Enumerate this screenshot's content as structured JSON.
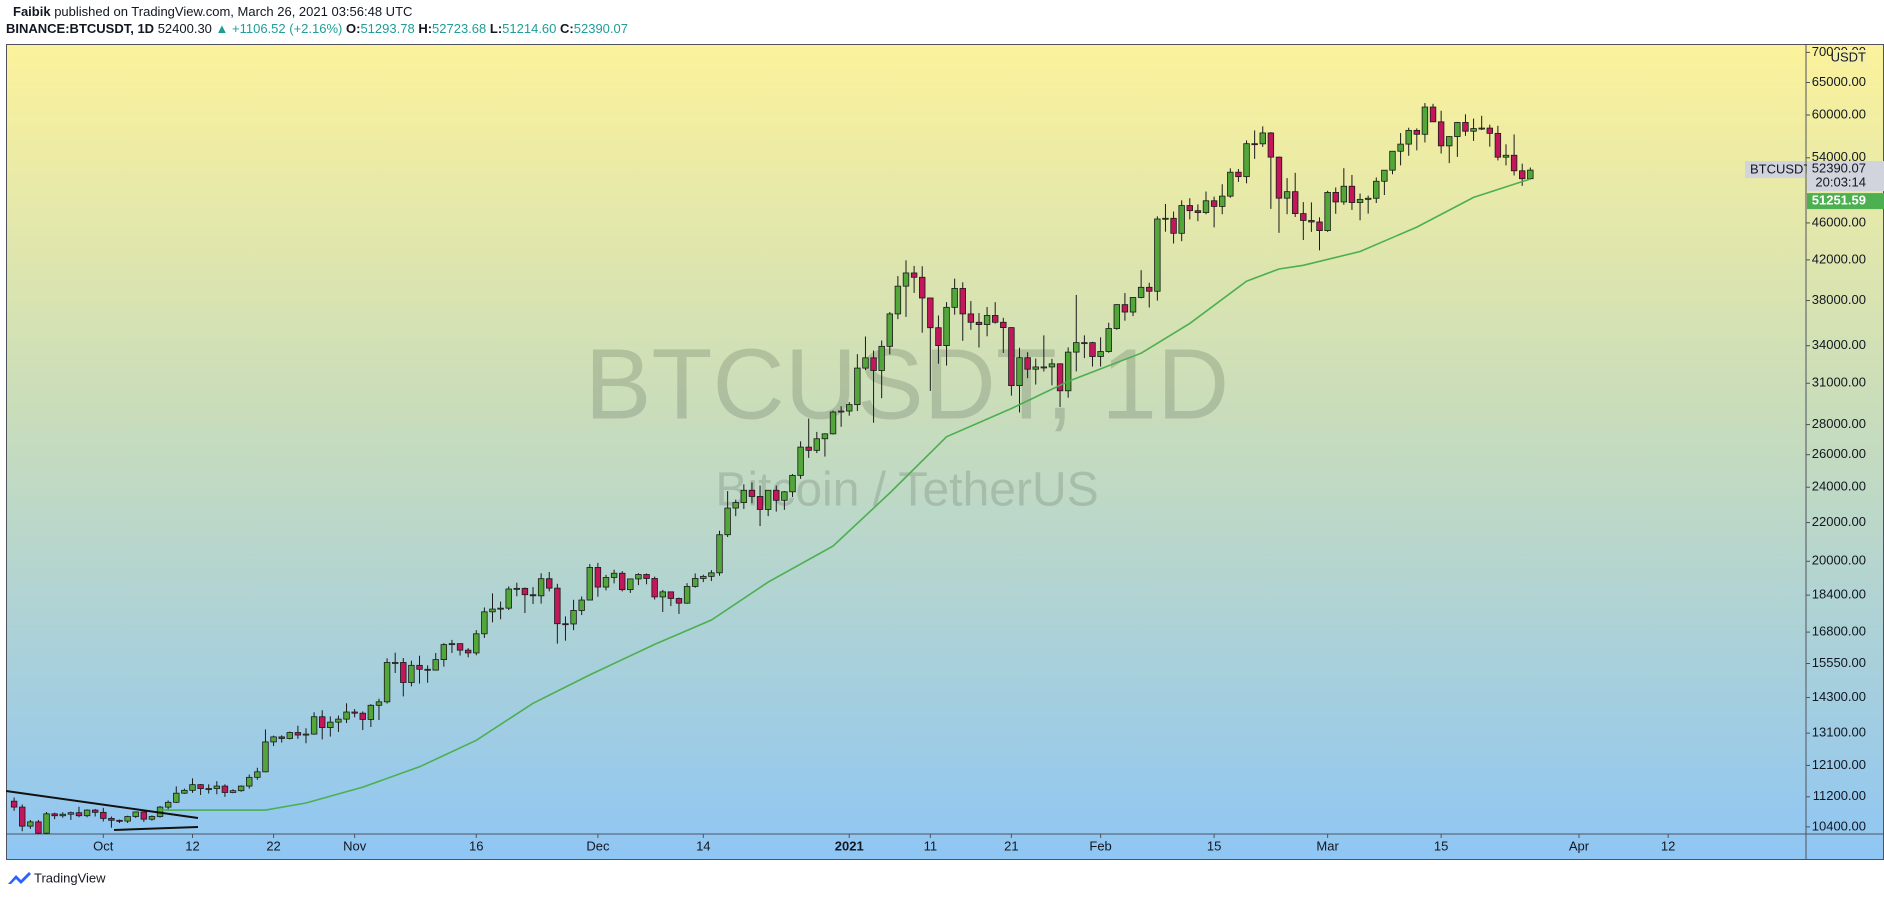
{
  "header": {
    "author": "Faibik",
    "published": "published on TradingView.com, March 26, 2021 03:56:48 UTC",
    "symbol": "BINANCE:BTCUSDT, 1D",
    "last": "52400.30",
    "change": "▲ +1106.52 (+2.16%)",
    "ohlc": [
      {
        "key": "O:",
        "value": "51293.78"
      },
      {
        "key": "H:",
        "value": "52723.68"
      },
      {
        "key": "L:",
        "value": "51214.60"
      },
      {
        "key": "C:",
        "value": "52390.07"
      }
    ]
  },
  "footer": {
    "brand": "TradingView"
  },
  "chart_data": {
    "type": "candlestick",
    "watermark": "BTCUSDT, 1D",
    "watermark_subtitle": "Bitcoin / TetherUS",
    "ylabel": "USDT",
    "symbol_tag": "BTCUSDT",
    "countdown": "20:03:14",
    "log_y": true,
    "grid": false,
    "up_color": "#52a63a",
    "down_color": "#c2185b",
    "wick_color": "#1a1a1a",
    "xlim": [
      "2020-09-19",
      "2021-04-29"
    ],
    "xticks": [
      {
        "value": "2020-10-01",
        "label": "Oct"
      },
      {
        "value": "2020-10-12",
        "label": "12"
      },
      {
        "value": "2020-10-22",
        "label": "22"
      },
      {
        "value": "2020-11-01",
        "label": "Nov"
      },
      {
        "value": "2020-11-16",
        "label": "16"
      },
      {
        "value": "2020-12-01",
        "label": "Dec"
      },
      {
        "value": "2020-12-14",
        "label": "14"
      },
      {
        "value": "2021-01-01",
        "label": "2021"
      },
      {
        "value": "2021-01-11",
        "label": "11"
      },
      {
        "value": "2021-01-21",
        "label": "21"
      },
      {
        "value": "2021-02-01",
        "label": "Feb"
      },
      {
        "value": "2021-02-15",
        "label": "15"
      },
      {
        "value": "2021-03-01",
        "label": "Mar"
      },
      {
        "value": "2021-03-15",
        "label": "15"
      },
      {
        "value": "2021-04-01",
        "label": "Apr"
      },
      {
        "value": "2021-04-12",
        "label": "12"
      }
    ],
    "ylim": [
      10220,
      71460
    ],
    "yticks": [
      {
        "value": 10400,
        "label": "10400.00"
      },
      {
        "value": 11200,
        "label": "11200.00"
      },
      {
        "value": 12100,
        "label": "12100.00"
      },
      {
        "value": 13100,
        "label": "13100.00"
      },
      {
        "value": 14300,
        "label": "14300.00"
      },
      {
        "value": 15550,
        "label": "15550.00"
      },
      {
        "value": 16800,
        "label": "16800.00"
      },
      {
        "value": 18400,
        "label": "18400.00"
      },
      {
        "value": 20000,
        "label": "20000.00"
      },
      {
        "value": 22000,
        "label": "22000.00"
      },
      {
        "value": 24000,
        "label": "24000.00"
      },
      {
        "value": 26000,
        "label": "26000.00"
      },
      {
        "value": 28000,
        "label": "28000.00"
      },
      {
        "value": 31000,
        "label": "31000.00"
      },
      {
        "value": 34000,
        "label": "34000.00"
      },
      {
        "value": 38000,
        "label": "38000.00"
      },
      {
        "value": 42000,
        "label": "42000.00"
      },
      {
        "value": 46000,
        "label": "46000.00"
      },
      {
        "value": 54000,
        "label": "54000.00"
      },
      {
        "value": 60000,
        "label": "60000.00"
      },
      {
        "value": 65000,
        "label": "65000.00"
      },
      {
        "value": 70000,
        "label": "70000.00"
      }
    ],
    "x": [
      "2020-09-20",
      "2020-09-21",
      "2020-09-22",
      "2020-09-23",
      "2020-09-24",
      "2020-09-25",
      "2020-09-26",
      "2020-09-27",
      "2020-09-28",
      "2020-09-29",
      "2020-09-30",
      "2020-10-01",
      "2020-10-02",
      "2020-10-03",
      "2020-10-04",
      "2020-10-05",
      "2020-10-06",
      "2020-10-07",
      "2020-10-08",
      "2020-10-09",
      "2020-10-10",
      "2020-10-11",
      "2020-10-12",
      "2020-10-13",
      "2020-10-14",
      "2020-10-15",
      "2020-10-16",
      "2020-10-17",
      "2020-10-18",
      "2020-10-19",
      "2020-10-20",
      "2020-10-21",
      "2020-10-22",
      "2020-10-23",
      "2020-10-24",
      "2020-10-25",
      "2020-10-26",
      "2020-10-27",
      "2020-10-28",
      "2020-10-29",
      "2020-10-30",
      "2020-10-31",
      "2020-11-01",
      "2020-11-02",
      "2020-11-03",
      "2020-11-04",
      "2020-11-05",
      "2020-11-06",
      "2020-11-07",
      "2020-11-08",
      "2020-11-09",
      "2020-11-10",
      "2020-11-11",
      "2020-11-12",
      "2020-11-13",
      "2020-11-14",
      "2020-11-15",
      "2020-11-16",
      "2020-11-17",
      "2020-11-18",
      "2020-11-19",
      "2020-11-20",
      "2020-11-21",
      "2020-11-22",
      "2020-11-23",
      "2020-11-24",
      "2020-11-25",
      "2020-11-26",
      "2020-11-27",
      "2020-11-28",
      "2020-11-29",
      "2020-11-30",
      "2020-12-01",
      "2020-12-02",
      "2020-12-03",
      "2020-12-04",
      "2020-12-05",
      "2020-12-06",
      "2020-12-07",
      "2020-12-08",
      "2020-12-09",
      "2020-12-10",
      "2020-12-11",
      "2020-12-12",
      "2020-12-13",
      "2020-12-14",
      "2020-12-15",
      "2020-12-16",
      "2020-12-17",
      "2020-12-18",
      "2020-12-19",
      "2020-12-20",
      "2020-12-21",
      "2020-12-22",
      "2020-12-23",
      "2020-12-24",
      "2020-12-25",
      "2020-12-26",
      "2020-12-27",
      "2020-12-28",
      "2020-12-29",
      "2020-12-30",
      "2020-12-31",
      "2021-01-01",
      "2021-01-02",
      "2021-01-03",
      "2021-01-04",
      "2021-01-05",
      "2021-01-06",
      "2021-01-07",
      "2021-01-08",
      "2021-01-09",
      "2021-01-10",
      "2021-01-11",
      "2021-01-12",
      "2021-01-13",
      "2021-01-14",
      "2021-01-15",
      "2021-01-16",
      "2021-01-17",
      "2021-01-18",
      "2021-01-19",
      "2021-01-20",
      "2021-01-21",
      "2021-01-22",
      "2021-01-23",
      "2021-01-24",
      "2021-01-25",
      "2021-01-26",
      "2021-01-27",
      "2021-01-28",
      "2021-01-29",
      "2021-01-30",
      "2021-01-31",
      "2021-02-01",
      "2021-02-02",
      "2021-02-03",
      "2021-02-04",
      "2021-02-05",
      "2021-02-06",
      "2021-02-07",
      "2021-02-08",
      "2021-02-09",
      "2021-02-10",
      "2021-02-11",
      "2021-02-12",
      "2021-02-13",
      "2021-02-14",
      "2021-02-15",
      "2021-02-16",
      "2021-02-17",
      "2021-02-18",
      "2021-02-19",
      "2021-02-20",
      "2021-02-21",
      "2021-02-22",
      "2021-02-23",
      "2021-02-24",
      "2021-02-25",
      "2021-02-26",
      "2021-02-27",
      "2021-02-28",
      "2021-03-01",
      "2021-03-02",
      "2021-03-03",
      "2021-03-04",
      "2021-03-05",
      "2021-03-06",
      "2021-03-07",
      "2021-03-08",
      "2021-03-09",
      "2021-03-10",
      "2021-03-11",
      "2021-03-12",
      "2021-03-13",
      "2021-03-14",
      "2021-03-15",
      "2021-03-16",
      "2021-03-17",
      "2021-03-18",
      "2021-03-19",
      "2021-03-20",
      "2021-03-21",
      "2021-03-22",
      "2021-03-23",
      "2021-03-24",
      "2021-03-25",
      "2021-03-26"
    ],
    "open": [
      11080,
      10920,
      10420,
      10530,
      10240,
      10740,
      10690,
      10730,
      10770,
      10690,
      10840,
      10780,
      10620,
      10570,
      10550,
      10670,
      10790,
      10600,
      10670,
      10920,
      11050,
      11300,
      11380,
      11540,
      11430,
      11430,
      11500,
      11320,
      11370,
      11500,
      11750,
      11910,
      12820,
      12980,
      12930,
      13120,
      13040,
      13070,
      13640,
      13280,
      13460,
      13560,
      13800,
      13760,
      13550,
      14030,
      14150,
      15590,
      15590,
      14840,
      15480,
      15330,
      15300,
      15700,
      16290,
      16330,
      16070,
      15960,
      16730,
      17660,
      17780,
      17820,
      18680,
      18710,
      18420,
      18370,
      19160,
      18720,
      17150,
      17140,
      17720,
      18180,
      19700,
      18770,
      19220,
      19420,
      18650,
      19150,
      19360,
      19170,
      18320,
      18550,
      18250,
      18040,
      18800,
      19170,
      19270,
      19440,
      21350,
      22800,
      23110,
      23820,
      23460,
      22720,
      23820,
      23240,
      23730,
      24710,
      26490,
      26280,
      27040,
      27370,
      28880,
      28950,
      29410,
      32180,
      33000,
      31990,
      33950,
      36770,
      39370,
      40670,
      40240,
      38240,
      35540,
      34010,
      37370,
      39150,
      36770,
      36020,
      35820,
      36630,
      36020,
      35550,
      30820,
      33010,
      32090,
      32270,
      32270,
      32520,
      30430,
      33470,
      34260,
      34260,
      33110,
      33520,
      35470,
      37620,
      36940,
      38290,
      39260,
      38880,
      46450,
      46530,
      44840,
      48010,
      47410,
      47190,
      48580,
      47910,
      49140,
      52120,
      51550,
      55910,
      55890,
      57410,
      54090,
      48890,
      49680,
      47070,
      46280,
      46110,
      45140,
      49590,
      48440,
      50350,
      48370,
      48750,
      48880,
      50970,
      52380,
      54880,
      55850,
      57770,
      57220,
      61190,
      59000,
      55610,
      56900,
      58910,
      57650,
      58030,
      58100,
      57350,
      54080,
      54340,
      52300,
      51293.78
    ],
    "high": [
      11180,
      10990,
      10580,
      10580,
      10790,
      10770,
      10780,
      10800,
      10930,
      10860,
      10870,
      10900,
      10670,
      10590,
      10690,
      10800,
      10800,
      10700,
      10950,
      11100,
      11490,
      11430,
      11720,
      11560,
      11550,
      11640,
      11550,
      11410,
      11520,
      11830,
      12030,
      13220,
      13020,
      13030,
      13150,
      13340,
      13260,
      13790,
      13860,
      13650,
      13680,
      14100,
      13900,
      13820,
      14070,
      14260,
      15750,
      15970,
      15760,
      15660,
      15850,
      15480,
      15960,
      16350,
      16480,
      16340,
      16150,
      16880,
      17850,
      18480,
      18110,
      18800,
      18970,
      18750,
      18770,
      19420,
      19480,
      18920,
      17460,
      18190,
      18340,
      19860,
      19920,
      19340,
      19590,
      19520,
      19170,
      19420,
      19410,
      19260,
      18640,
      18560,
      18290,
      18950,
      19410,
      19350,
      19570,
      21560,
      23770,
      23280,
      24170,
      24290,
      24100,
      23840,
      24100,
      23770,
      24790,
      26870,
      28420,
      27500,
      27410,
      28990,
      29300,
      29600,
      33300,
      34780,
      33600,
      34440,
      36940,
      40360,
      41950,
      41380,
      41350,
      38260,
      36630,
      37850,
      40100,
      39750,
      37950,
      36850,
      37400,
      37850,
      36420,
      35600,
      33830,
      33460,
      32940,
      34880,
      32920,
      32560,
      33860,
      38530,
      34880,
      34330,
      34710,
      35980,
      37660,
      38710,
      38310,
      40950,
      39700,
      46750,
      48200,
      47310,
      48630,
      48880,
      48150,
      49700,
      49080,
      50600,
      52620,
      52530,
      56370,
      57770,
      58350,
      57530,
      54180,
      51370,
      52040,
      48420,
      48390,
      46640,
      49790,
      50200,
      52640,
      51770,
      49450,
      49200,
      51450,
      52400,
      54900,
      57390,
      58150,
      58060,
      61790,
      61680,
      60630,
      56940,
      58990,
      60100,
      59470,
      59880,
      58590,
      58430,
      55840,
      57200,
      53230,
      52723.68
    ],
    "low": [
      10820,
      10290,
      10350,
      10140,
      10200,
      10600,
      10640,
      10580,
      10650,
      10650,
      10670,
      10540,
      10380,
      10500,
      10500,
      10630,
      10530,
      10560,
      10640,
      10830,
      11030,
      11280,
      11310,
      11250,
      11290,
      11270,
      11200,
      11300,
      11340,
      11430,
      11680,
      11900,
      12690,
      12800,
      12900,
      12920,
      12780,
      13050,
      12900,
      12990,
      13140,
      13430,
      13620,
      13200,
      13300,
      13530,
      14090,
      15190,
      14340,
      14700,
      14800,
      14830,
      15280,
      15430,
      15960,
      15860,
      15790,
      15870,
      16560,
      17210,
      17340,
      17740,
      18350,
      17610,
      18000,
      18020,
      18570,
      16330,
      16450,
      16880,
      17520,
      18180,
      18330,
      18620,
      18940,
      18570,
      18500,
      18860,
      18900,
      18200,
      17650,
      17910,
      17570,
      18010,
      18740,
      19000,
      19050,
      19300,
      21230,
      22350,
      22750,
      23070,
      21810,
      22350,
      22600,
      22700,
      23430,
      24500,
      25800,
      26100,
      25880,
      27320,
      27850,
      28620,
      28950,
      32020,
      28130,
      29880,
      33290,
      36300,
      36500,
      38720,
      35110,
      30420,
      32530,
      32380,
      36700,
      34410,
      35360,
      33850,
      34800,
      35900,
      33400,
      30070,
      28850,
      31390,
      30900,
      31910,
      30840,
      29240,
      29920,
      31920,
      32980,
      32300,
      32300,
      33420,
      35360,
      36160,
      36570,
      38210,
      37350,
      37990,
      45020,
      43730,
      43980,
      46400,
      46200,
      47000,
      45500,
      47000,
      48940,
      50900,
      50710,
      53860,
      55480,
      47620,
      44890,
      47000,
      46680,
      44110,
      45000,
      43000,
      45000,
      47050,
      48100,
      47500,
      46300,
      47070,
      48310,
      49270,
      51850,
      53000,
      54270,
      55000,
      56080,
      58970,
      54570,
      53300,
      54120,
      57000,
      56290,
      57820,
      55500,
      53650,
      53000,
      51700,
      50400,
      51214.6
    ],
    "close": [
      10920,
      10420,
      10530,
      10240,
      10740,
      10690,
      10730,
      10770,
      10690,
      10840,
      10780,
      10620,
      10570,
      10550,
      10670,
      10790,
      10600,
      10670,
      10920,
      11050,
      11300,
      11380,
      11540,
      11430,
      11430,
      11500,
      11320,
      11370,
      11500,
      11750,
      11910,
      12820,
      12980,
      12930,
      13120,
      13040,
      13070,
      13640,
      13280,
      13460,
      13560,
      13800,
      13760,
      13550,
      14030,
      14150,
      15590,
      15590,
      14840,
      15480,
      15330,
      15300,
      15700,
      16290,
      16330,
      16070,
      15960,
      16730,
      17660,
      17780,
      17820,
      18680,
      18710,
      18420,
      18370,
      19160,
      18720,
      17150,
      17140,
      17720,
      18180,
      19700,
      18770,
      19220,
      19420,
      18650,
      19150,
      19360,
      19170,
      18320,
      18550,
      18250,
      18040,
      18800,
      19170,
      19270,
      19440,
      21350,
      22800,
      23110,
      23820,
      23460,
      22720,
      23820,
      23240,
      23730,
      24710,
      26490,
      26280,
      27040,
      27370,
      28880,
      28950,
      29410,
      32180,
      33000,
      31990,
      33950,
      36770,
      39370,
      40670,
      40240,
      38240,
      35540,
      34010,
      37370,
      39150,
      36770,
      36020,
      35820,
      36630,
      36020,
      35550,
      30820,
      33010,
      32090,
      32270,
      32270,
      32520,
      30430,
      33470,
      34260,
      34260,
      33110,
      33520,
      35470,
      37620,
      36940,
      38290,
      39260,
      38880,
      46450,
      46530,
      44840,
      48010,
      47410,
      47190,
      48580,
      47910,
      49140,
      52120,
      51550,
      55910,
      55890,
      57410,
      54090,
      48890,
      49680,
      47070,
      46280,
      46110,
      45140,
      49590,
      48440,
      50350,
      48370,
      48750,
      48880,
      50970,
      52380,
      54880,
      55850,
      57770,
      57220,
      61190,
      59000,
      55610,
      56900,
      58910,
      57650,
      58030,
      58100,
      57350,
      54080,
      54340,
      52300,
      51290,
      52390.07
    ],
    "ma": {
      "color": "#4caf50",
      "x": [
        "2020-10-08",
        "2020-10-21",
        "2020-10-26",
        "2020-11-02",
        "2020-11-09",
        "2020-11-16",
        "2020-11-23",
        "2020-11-30",
        "2020-12-08",
        "2020-12-15",
        "2020-12-22",
        "2020-12-30",
        "2021-01-06",
        "2021-01-13",
        "2021-01-21",
        "2021-01-28",
        "2021-02-06",
        "2021-02-12",
        "2021-02-19",
        "2021-02-23",
        "2021-02-26",
        "2021-03-05",
        "2021-03-12",
        "2021-03-19",
        "2021-03-26"
      ],
      "values": [
        10840,
        10840,
        11030,
        11470,
        12060,
        12870,
        14100,
        15120,
        16300,
        17310,
        19000,
        20760,
        23660,
        27170,
        29130,
        31140,
        33380,
        35920,
        39850,
        41070,
        41440,
        42880,
        45530,
        48980,
        51251.59
      ]
    }
  }
}
